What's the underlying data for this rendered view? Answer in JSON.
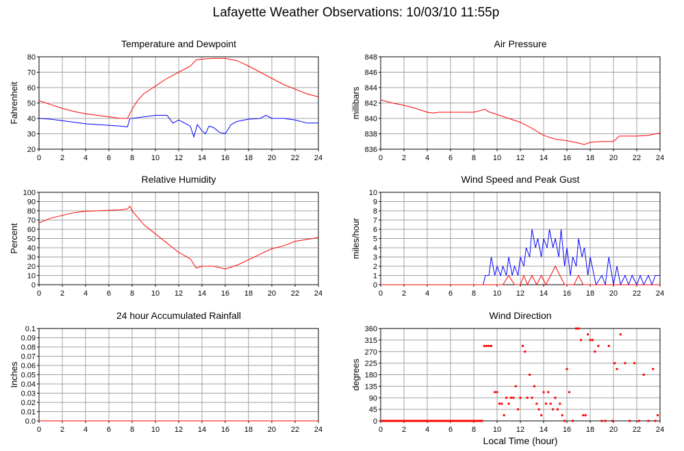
{
  "page": {
    "title": "Lafayette Weather Observations: 10/03/10 11:55p"
  },
  "colors": {
    "primary": "#ff0000",
    "secondary": "#0000ff",
    "grid": "#a0a0a0",
    "axis": "#000000"
  },
  "chart_data": [
    {
      "id": "temp",
      "type": "line",
      "title": "Temperature and Dewpoint",
      "ylabel": "Fahrenheit",
      "xlabel": "",
      "xlim": [
        0,
        24
      ],
      "ylim": [
        20,
        80
      ],
      "xticks": [
        0,
        2,
        4,
        6,
        8,
        10,
        12,
        14,
        16,
        18,
        20,
        22,
        24
      ],
      "yticks": [
        20,
        30,
        40,
        50,
        60,
        70,
        80
      ],
      "series": [
        {
          "color": "#ff0000",
          "x": [
            0,
            1,
            2,
            3,
            4,
            5,
            6,
            7,
            7.6,
            8,
            8.5,
            9,
            10,
            11,
            12,
            13,
            13.5,
            14,
            15,
            16,
            17,
            18,
            19,
            20,
            21,
            22,
            23,
            24
          ],
          "y": [
            51.5,
            49,
            46.5,
            44.5,
            43,
            42,
            41,
            40,
            40,
            46,
            52,
            56,
            61,
            66,
            70,
            74,
            78,
            78.5,
            79,
            79,
            77.5,
            74,
            70,
            66,
            62,
            59,
            56,
            54
          ]
        },
        {
          "color": "#0000ff",
          "x": [
            0,
            1,
            2,
            3,
            4,
            5,
            6,
            7,
            7.6,
            7.8,
            8,
            9,
            10,
            11,
            11.5,
            12,
            12.5,
            13,
            13.3,
            13.6,
            14,
            14.3,
            14.6,
            15,
            15.5,
            16,
            16.5,
            17,
            18,
            19,
            19.5,
            20,
            21,
            22,
            23,
            24
          ],
          "y": [
            40,
            39.5,
            38.5,
            37.5,
            36.5,
            36,
            35.5,
            35,
            34.5,
            40,
            40,
            41,
            42,
            42,
            37,
            39,
            37,
            35,
            28,
            36,
            32,
            30,
            35,
            34,
            31,
            30,
            36,
            38,
            39.5,
            40,
            42,
            40,
            40,
            39,
            37,
            37
          ]
        }
      ]
    },
    {
      "id": "pressure",
      "type": "line",
      "title": "Air Pressure",
      "ylabel": "millibars",
      "xlabel": "",
      "xlim": [
        0,
        24
      ],
      "ylim": [
        836,
        848
      ],
      "xticks": [
        0,
        2,
        4,
        6,
        8,
        10,
        12,
        14,
        16,
        18,
        20,
        22,
        24
      ],
      "yticks": [
        836,
        838,
        840,
        842,
        844,
        846,
        848
      ],
      "series": [
        {
          "color": "#ff0000",
          "x": [
            0,
            1,
            2,
            3,
            4,
            4.5,
            5,
            6,
            7,
            8,
            9,
            9.2,
            10,
            11,
            12,
            13,
            14,
            15,
            16,
            17,
            17.5,
            18,
            19,
            20,
            20.5,
            21,
            22,
            23,
            24
          ],
          "y": [
            842.4,
            842,
            841.7,
            841.3,
            840.8,
            840.7,
            840.8,
            840.8,
            840.8,
            840.8,
            841.2,
            840.9,
            840.5,
            840,
            839.5,
            838.7,
            837.8,
            837.3,
            837.1,
            836.8,
            836.6,
            836.9,
            837,
            837,
            837.7,
            837.7,
            837.7,
            837.8,
            838.1
          ]
        }
      ]
    },
    {
      "id": "humidity",
      "type": "line",
      "title": "Relative Humidity",
      "ylabel": "Percent",
      "xlabel": "",
      "xlim": [
        0,
        24
      ],
      "ylim": [
        0,
        100
      ],
      "xticks": [
        0,
        2,
        4,
        6,
        8,
        10,
        12,
        14,
        16,
        18,
        20,
        22,
        24
      ],
      "yticks": [
        0,
        10,
        20,
        30,
        40,
        50,
        60,
        70,
        80,
        90,
        100
      ],
      "series": [
        {
          "color": "#ff0000",
          "x": [
            0,
            1,
            2,
            3,
            4,
            5,
            6,
            7,
            7.6,
            7.8,
            8,
            9,
            10,
            11,
            12,
            13,
            13.5,
            14,
            15,
            16,
            17,
            18,
            19,
            20,
            21,
            22,
            23,
            24
          ],
          "y": [
            67,
            72,
            75,
            78,
            79.5,
            80,
            80.5,
            81,
            82,
            85,
            80,
            65,
            55,
            45,
            35,
            28,
            18,
            20,
            20,
            17,
            21,
            27,
            33,
            39,
            42,
            47,
            49,
            51
          ]
        }
      ]
    },
    {
      "id": "wind",
      "type": "line",
      "title": "Wind Speed and Peak Gust",
      "ylabel": "miles/hour",
      "xlabel": "",
      "xlim": [
        0,
        24
      ],
      "ylim": [
        0,
        10
      ],
      "xticks": [
        0,
        2,
        4,
        6,
        8,
        10,
        12,
        14,
        16,
        18,
        20,
        22,
        24
      ],
      "yticks": [
        0,
        1,
        2,
        3,
        4,
        5,
        6,
        7,
        8,
        9,
        10
      ],
      "series": [
        {
          "color": "#0000ff",
          "x": [
            0,
            8.8,
            9,
            9.3,
            9.5,
            9.8,
            10,
            10.3,
            10.5,
            10.8,
            11,
            11.3,
            11.5,
            11.8,
            12,
            12.3,
            12.5,
            12.8,
            13,
            13.3,
            13.5,
            13.8,
            14,
            14.3,
            14.5,
            14.8,
            15,
            15.3,
            15.5,
            15.8,
            16,
            16.3,
            16.5,
            16.8,
            17,
            17.3,
            17.5,
            17.8,
            18,
            18.5,
            19,
            19.3,
            19.6,
            20,
            20.3,
            20.6,
            21,
            21.3,
            21.6,
            22,
            22.3,
            22.6,
            23,
            23.3,
            23.6,
            24
          ],
          "y": [
            0,
            0,
            1,
            1,
            3,
            1,
            2,
            1,
            2,
            1,
            3,
            1,
            2,
            1,
            3,
            2,
            4,
            3,
            6,
            4,
            5,
            3,
            5,
            4,
            6,
            4,
            5,
            3,
            6,
            2,
            4,
            1,
            3,
            2,
            5,
            3,
            4,
            1,
            3,
            0,
            1,
            0,
            3,
            0,
            2,
            0,
            1,
            0,
            1,
            0,
            1,
            0,
            1,
            0,
            1,
            1
          ]
        },
        {
          "color": "#ff0000",
          "x": [
            0,
            10,
            10.5,
            11,
            11.5,
            12,
            12.3,
            12.6,
            13,
            13.4,
            13.8,
            14.2,
            14.6,
            15,
            15.4,
            15.8,
            16.2,
            16.6,
            17,
            17.4,
            24
          ],
          "y": [
            0,
            0,
            0,
            1,
            0,
            0,
            1,
            0,
            1,
            0,
            1,
            0,
            1,
            2,
            1,
            0,
            0,
            0,
            1,
            0,
            0
          ]
        }
      ]
    },
    {
      "id": "rain",
      "type": "line",
      "title": "24 hour Accumulated Rainfall",
      "ylabel": "Inches",
      "xlabel": "",
      "xlim": [
        0,
        24
      ],
      "ylim": [
        0,
        0.1
      ],
      "xticks": [
        0,
        2,
        4,
        6,
        8,
        10,
        12,
        14,
        16,
        18,
        20,
        22,
        24
      ],
      "yticks": [
        "0.0",
        "0.01",
        "0.02",
        "0.03",
        "0.04",
        "0.05",
        "0.06",
        "0.07",
        "0.08",
        "0.09",
        "0.1"
      ],
      "series": [
        {
          "color": "#ff0000",
          "x": [
            0,
            24
          ],
          "y": [
            0,
            0
          ]
        }
      ]
    },
    {
      "id": "direction",
      "type": "scatter",
      "title": "Wind Direction",
      "ylabel": "degrees",
      "xlabel": "Local Time (hour)",
      "xlim": [
        0,
        24
      ],
      "ylim": [
        0,
        360
      ],
      "xticks": [
        0,
        2,
        4,
        6,
        8,
        10,
        12,
        14,
        16,
        18,
        20,
        22,
        24
      ],
      "yticks": [
        0,
        45,
        90,
        135,
        180,
        225,
        270,
        315,
        360
      ],
      "series": [
        {
          "color": "#ff0000",
          "x": [
            8.9,
            9.1,
            9.3,
            9.5,
            9.8,
            10.0,
            10.2,
            10.4,
            10.6,
            10.8,
            11.0,
            11.2,
            11.4,
            11.6,
            11.8,
            12.0,
            12.2,
            12.4,
            12.6,
            12.8,
            13.0,
            13.2,
            13.4,
            13.6,
            13.8,
            14.0,
            14.2,
            14.4,
            14.6,
            14.8,
            15.0,
            15.2,
            15.4,
            15.6,
            15.8,
            16.0,
            16.2,
            16.5,
            16.8,
            17.0,
            17.2,
            17.4,
            17.6,
            17.8,
            18.0,
            18.2,
            18.4,
            18.7,
            19.0,
            19.3,
            19.6,
            19.9,
            20.1,
            20.3,
            20.6,
            21.0,
            21.4,
            21.8,
            22.2,
            22.6,
            23.0,
            23.4,
            23.6,
            23.8
          ],
          "y": [
            292,
            292,
            292,
            292,
            112,
            112,
            67,
            67,
            22,
            90,
            67,
            90,
            90,
            135,
            45,
            90,
            292,
            270,
            90,
            180,
            90,
            135,
            67,
            45,
            22,
            112,
            67,
            112,
            67,
            45,
            90,
            45,
            67,
            22,
            0,
            202,
            112,
            0,
            360,
            360,
            315,
            22,
            22,
            337,
            315,
            315,
            270,
            292,
            0,
            0,
            292,
            0,
            225,
            202,
            337,
            225,
            0,
            225,
            0,
            180,
            0,
            202,
            0,
            22
          ],
          "baseline_span": [
            0,
            8.8
          ],
          "baseline_value": 0
        }
      ]
    }
  ]
}
